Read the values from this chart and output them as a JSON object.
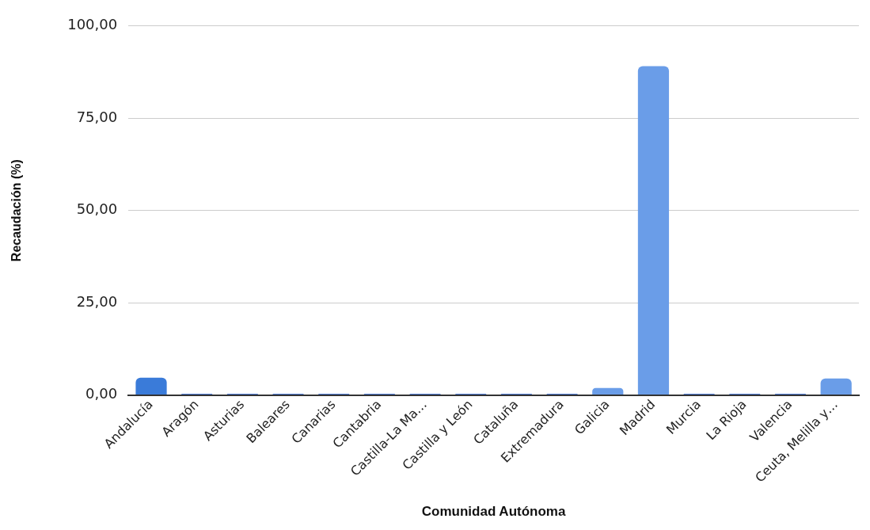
{
  "chart_data": {
    "type": "bar",
    "xlabel": "Comunidad Autónoma",
    "ylabel": "Recaudación (%)",
    "categories": [
      "Andalucía",
      "Aragón",
      "Asturias",
      "Baleares",
      "Canarias",
      "Cantabria",
      "Castilla-La Ma…",
      "Castilla y León",
      "Cataluña",
      "Extremadura",
      "Galicia",
      "Madrid",
      "Murcia",
      "La Rioja",
      "Valencia",
      "Ceuta, Melilla y…"
    ],
    "values": [
      4.7,
      0.3,
      0.3,
      0.3,
      0.3,
      0.3,
      0.3,
      0.3,
      0.3,
      0.3,
      1.9,
      89.1,
      0.3,
      0.3,
      0.3,
      4.5
    ],
    "colors": [
      "#3a7bd9",
      "#1a56d0",
      "#1a56d0",
      "#1a56d0",
      "#1a56d0",
      "#1a56d0",
      "#1a56d0",
      "#1a56d0",
      "#1a56d0",
      "#1a56d0",
      "#6a9de8",
      "#6a9de8",
      "#1a56d0",
      "#1a56d0",
      "#1a56d0",
      "#6a9de8"
    ],
    "ylim": [
      0,
      100
    ],
    "yticks": [
      {
        "value": 0,
        "label": "0,00"
      },
      {
        "value": 25,
        "label": "25,00"
      },
      {
        "value": 50,
        "label": "50,00"
      },
      {
        "value": 75,
        "label": "75,00"
      },
      {
        "value": 100,
        "label": "100,00"
      }
    ],
    "grid": "y",
    "legend": false
  }
}
